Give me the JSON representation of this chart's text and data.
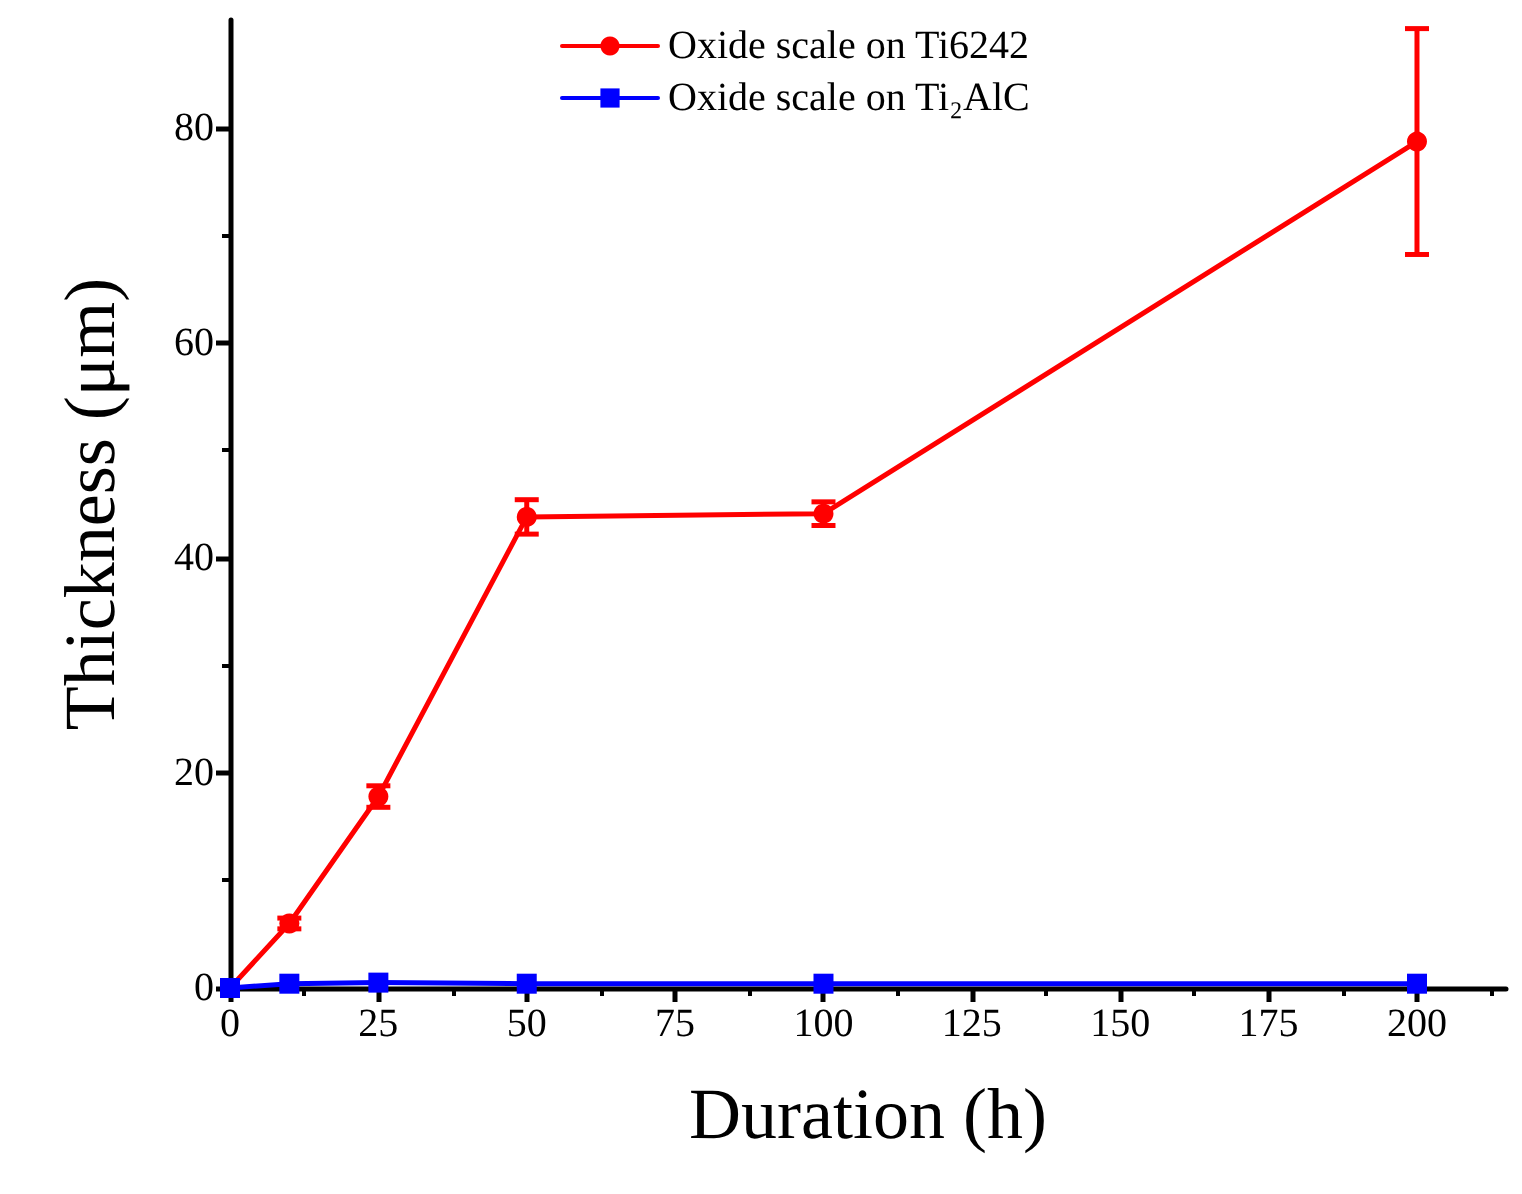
{
  "chart_data": {
    "type": "line",
    "xlabel": "Duration (h)",
    "ylabel": "Thickness (μm)",
    "x": [
      0,
      10,
      25,
      50,
      100,
      200
    ],
    "series": [
      {
        "name": "Oxide scale on Ti6242",
        "color": "#ff0000",
        "marker": "circle",
        "values": [
          0,
          6,
          17.8,
          43.8,
          44.1,
          78.7
        ],
        "errors": [
          null,
          0.5,
          1,
          1.6,
          1.1,
          10.5
        ]
      },
      {
        "name": "Oxide scale on Ti₂AlC",
        "color": "#0000ff",
        "marker": "square",
        "values": [
          0,
          0.4,
          0.5,
          0.4,
          0.4,
          0.4
        ]
      }
    ],
    "xlim": [
      0,
      215
    ],
    "xticks": [
      0,
      25,
      50,
      75,
      100,
      125,
      150,
      175,
      200
    ],
    "ylim": [
      0,
      90
    ],
    "yticks": [
      0,
      20,
      40,
      60,
      80
    ],
    "grid": false,
    "legend": "top",
    "line_style": "solid"
  }
}
